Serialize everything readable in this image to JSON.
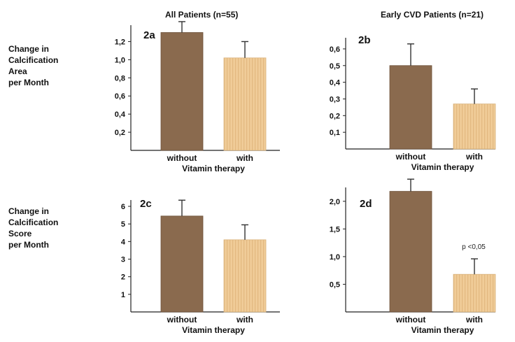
{
  "column_titles": [
    "All Patients (n=55)",
    "Early CVD Patients (n=21)"
  ],
  "row_labels": [
    [
      "Change in",
      "Calcification",
      "Area",
      "per Month"
    ],
    [
      "Change in",
      "Calcification",
      "Score",
      "per Month"
    ]
  ],
  "colors": {
    "without": "#8a6a4e",
    "with": "#f0cc98",
    "with_stripe": "#e0b478",
    "axis": "#222222"
  },
  "chart_data": [
    {
      "type": "bar",
      "panel": "2a",
      "categories": [
        "without",
        "with"
      ],
      "xlabel": "Vitamin therapy",
      "values": [
        1.3,
        1.02
      ],
      "error_upper": [
        1.42,
        1.2
      ],
      "ylim": [
        0,
        1.35
      ],
      "yticks": [
        "0,2",
        "0,4",
        "0,6",
        "0,8",
        "1,0",
        "1,2"
      ],
      "ytick_values": [
        0.2,
        0.4,
        0.6,
        0.8,
        1.0,
        1.2
      ],
      "annotation": ""
    },
    {
      "type": "bar",
      "panel": "2b",
      "categories": [
        "without",
        "with"
      ],
      "xlabel": "Vitamin therapy",
      "values": [
        0.5,
        0.27
      ],
      "error_upper": [
        0.63,
        0.36
      ],
      "ylim": [
        0,
        0.65
      ],
      "yticks": [
        "0,1",
        "0,2",
        "0,3",
        "0,4",
        "0,5",
        "0,6"
      ],
      "ytick_values": [
        0.1,
        0.2,
        0.3,
        0.4,
        0.5,
        0.6
      ],
      "annotation": ""
    },
    {
      "type": "bar",
      "panel": "2c",
      "categories": [
        "without",
        "with"
      ],
      "xlabel": "Vitamin therapy",
      "values": [
        5.45,
        4.1
      ],
      "error_upper": [
        6.35,
        4.95
      ],
      "ylim": [
        0,
        6.2
      ],
      "yticks": [
        "1",
        "2",
        "3",
        "4",
        "5",
        "6"
      ],
      "ytick_values": [
        1,
        2,
        3,
        4,
        5,
        6
      ],
      "annotation": ""
    },
    {
      "type": "bar",
      "panel": "2d",
      "categories": [
        "without",
        "with"
      ],
      "xlabel": "Vitamin therapy",
      "values": [
        2.18,
        0.68
      ],
      "error_upper": [
        2.4,
        0.96
      ],
      "ylim": [
        0,
        2.2
      ],
      "yticks": [
        "0,5",
        "1,0",
        "1,5",
        "2,0"
      ],
      "ytick_values": [
        0.5,
        1.0,
        1.5,
        2.0
      ],
      "annotation": "p <0,05"
    }
  ]
}
